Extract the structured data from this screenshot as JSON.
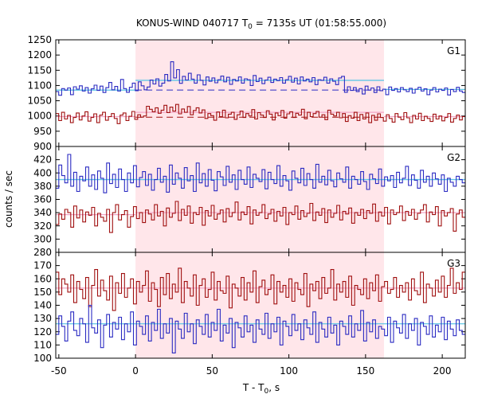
{
  "chart_data": {
    "type": "line",
    "title": {
      "main": "KONUS-WIND 040717 T",
      "sub": "0",
      "rest": " = 7135s UT (01:58:55.000)"
    },
    "xlabel": {
      "main": "T - T",
      "sub": "0",
      "rest": ", s"
    },
    "ylabel": "counts / sec",
    "xlim": [
      -52,
      215
    ],
    "xticks": [
      -50,
      0,
      50,
      100,
      150,
      200
    ],
    "shaded_interval": [
      0,
      162
    ],
    "colors": {
      "blue": "#2b2bc2",
      "red": "#a01010",
      "cyan": "#5fc6e6",
      "pink": "#f0a6c6",
      "shade": "#ffe6ea"
    },
    "panels": [
      {
        "label": "G1",
        "ylim": [
          900,
          1250
        ],
        "yticks": [
          900,
          950,
          1000,
          1050,
          1100,
          1150,
          1200,
          1250
        ],
        "series": [
          {
            "color": "blue",
            "fit_before": 1085,
            "fit_during": 1117,
            "fit_after": 1087,
            "dashed": 1085,
            "values": [
              1080,
              1068,
              1090,
              1085,
              1092,
              1070,
              1096,
              1088,
              1099,
              1082,
              1093,
              1075,
              1089,
              1101,
              1084,
              1098,
              1077,
              1093,
              1110,
              1086,
              1097,
              1082,
              1120,
              1090,
              1078,
              1094,
              1108,
              1083,
              1112,
              1099,
              1086,
              1095,
              1118,
              1105,
              1122,
              1098,
              1108,
              1136,
              1115,
              1178,
              1125,
              1152,
              1107,
              1130,
              1118,
              1140,
              1121,
              1108,
              1135,
              1117,
              1102,
              1128,
              1114,
              1125,
              1109,
              1119,
              1131,
              1112,
              1127,
              1104,
              1120,
              1115,
              1128,
              1108,
              1122,
              1119,
              1100,
              1133,
              1113,
              1124,
              1106,
              1118,
              1127,
              1110,
              1121,
              1116,
              1126,
              1108,
              1119,
              1130,
              1111,
              1124,
              1105,
              1128,
              1115,
              1121,
              1112,
              1126,
              1103,
              1119,
              1117,
              1127,
              1108,
              1122,
              1114,
              1103,
              1125,
              1130,
              1078,
              1096,
              1084,
              1093,
              1080,
              1090,
              1072,
              1098,
              1085,
              1092,
              1077,
              1096,
              1083,
              1088,
              1070,
              1095,
              1084,
              1090,
              1079,
              1093,
              1086,
              1080,
              1091,
              1075,
              1088,
              1094,
              1082,
              1089,
              1070,
              1085,
              1093,
              1079,
              1088,
              1084,
              1092,
              1069,
              1087,
              1080,
              1094,
              1082,
              1077
            ]
          },
          {
            "color": "red",
            "fit_before": 998,
            "fit_during": 1012,
            "fit_after": 998,
            "dashed": 996,
            "values": [
              1008,
              985,
              1012,
              990,
              1002,
              978,
              995,
              1010,
              987,
              1000,
              1014,
              983,
              995,
              1007,
              978,
              1003,
              1012,
              986,
              998,
              1008,
              992,
              975,
              1003,
              1010,
              985,
              999,
              1015,
              989,
              1004,
              996,
              1000,
              1032,
              1022,
              1014,
              1027,
              1009,
              1019,
              1035,
              1011,
              1029,
              1016,
              1038,
              1007,
              1023,
              1012,
              1031,
              1004,
              1018,
              1027,
              1010,
              1020,
              992,
              1008,
              1001,
              986,
              1013,
              998,
              1019,
              994,
              1006,
              1012,
              989,
              1004,
              1016,
              995,
              1008,
              1000,
              1021,
              990,
              1011,
              1003,
              995,
              1017,
              1006,
              987,
              1010,
              1001,
              1018,
              993,
              1007,
              1014,
              995,
              1009,
              1003,
              1022,
              991,
              1012,
              998,
              1008,
              1015,
              996,
              1004,
              988,
              1019,
              1006,
              1000,
              1012,
              994,
              1008,
              982,
              1001,
              993,
              1012,
              985,
              1005,
              990,
              1010,
              978,
              1002,
              986,
              1007,
              995,
              983,
              1004,
              992,
              980,
              1008,
              996,
              988,
              1011,
              994,
              978,
              1002,
              990,
              1009,
              985,
              999,
              992,
              982,
              1006,
              990,
              1000,
              984,
              995,
              1008,
              980,
              992,
              1003,
              987,
              998
            ]
          }
        ]
      },
      {
        "label": "G2",
        "ylim": [
          280,
          440
        ],
        "yticks": [
          280,
          300,
          320,
          340,
          360,
          380,
          400,
          420
        ],
        "series": [
          {
            "color": "blue",
            "fit_before": 390,
            "fit_during": 390,
            "fit_after": 390,
            "values": [
              377,
              412,
              396,
              385,
              428,
              380,
              401,
              372,
              395,
              388,
              409,
              380,
              397,
              375,
              403,
              392,
              370,
              415,
              384,
              398,
              378,
              406,
              390,
              372,
              400,
              385,
              411,
              379,
              393,
              402,
              381,
              398,
              374,
              390,
              407,
              386,
              395,
              371,
              412,
              383,
              400,
              392,
              377,
              408,
              388,
              396,
              372,
              415,
              385,
              399,
              380,
              405,
              389,
              373,
              402,
              394,
              381,
              410,
              386,
              397,
              375,
              404,
              390,
              383,
              409,
              378,
              398,
              392,
              387,
              405,
              376,
              401,
              390,
              384,
              411,
              380,
              396,
              388,
              374,
              403,
              392,
              385,
              407,
              381,
              399,
              390,
              377,
              413,
              386,
              395,
              382,
              404,
              388,
              379,
              400,
              391,
              386,
              409,
              377,
              395,
              390,
              383,
              402,
              387,
              375,
              398,
              391,
              384,
              406,
              380,
              394,
              388,
              396,
              378,
              401,
              385,
              392,
              410,
              381,
              397,
              389,
              377,
              404,
              386,
              395,
              380,
              400,
              391,
              383,
              397,
              372,
              392,
              386,
              380,
              395,
              390,
              385
            ]
          },
          {
            "color": "red",
            "fit_before": 337,
            "fit_during": 340,
            "fit_after": 340,
            "values": [
              322,
              338,
              330,
              345,
              340,
              318,
              350,
              332,
              344,
              326,
              341,
              336,
              348,
              320,
              339,
              333,
              327,
              345,
              310,
              340,
              352,
              329,
              337,
              343,
              318,
              334,
              349,
              331,
              340,
              325,
              344,
              338,
              329,
              352,
              335,
              342,
              320,
              347,
              333,
              339,
              357,
              328,
              345,
              336,
              350,
              324,
              340,
              337,
              348,
              321,
              343,
              335,
              351,
              330,
              338,
              344,
              326,
              346,
              334,
              340,
              356,
              329,
              341,
              337,
              349,
              323,
              344,
              336,
              340,
              352,
              331,
              338,
              345,
              327,
              342,
              335,
              348,
              322,
              340,
              337,
              350,
              330,
              343,
              334,
              339,
              354,
              328,
              341,
              336,
              346,
              325,
              344,
              333,
              339,
              351,
              329,
              342,
              338,
              347,
              324,
              340,
              336,
              345,
              331,
              343,
              339,
              353,
              327,
              341,
              335,
              348,
              323,
              344,
              337,
              340,
              350,
              328,
              342,
              336,
              345,
              330,
              339,
              344,
              352,
              326,
              341,
              337,
              349,
              320,
              343,
              335,
              340,
              346,
              312,
              338,
              344,
              333
            ]
          }
        ]
      },
      {
        "label": "G3",
        "ylim": [
          100,
          180
        ],
        "yticks": [
          100,
          110,
          120,
          130,
          140,
          150,
          160,
          170,
          180
        ],
        "series": [
          {
            "color": "red",
            "fit_before": 153,
            "fit_during": 153,
            "fit_after": 153,
            "values": [
              165,
              148,
              160,
              156,
              150,
              163,
              142,
              158,
              152,
              145,
              161,
              139,
              155,
              167,
              147,
              159,
              151,
              144,
              162,
              136,
              157,
              149,
              164,
              146,
              153,
              160,
              141,
              158,
              150,
              155,
              166,
              143,
              157,
              152,
              139,
              161,
              148,
              164,
              145,
              156,
              150,
              168,
              142,
              158,
              153,
              147,
              163,
              140,
              155,
              160,
              146,
              152,
              165,
              144,
              158,
              151,
              149,
              162,
              138,
              156,
              153,
              147,
              161,
              144,
              157,
              150,
              166,
              142,
              154,
              159,
              148,
              152,
              163,
              141,
              158,
              150,
              155,
              146,
              160,
              143,
              157,
              152,
              148,
              164,
              139,
              156,
              151,
              158,
              145,
              161,
              149,
              153,
              167,
              144,
              156,
              150,
              158,
              146,
              162,
              140,
              155,
              152,
              148,
              160,
              145,
              157,
              151,
              163,
              143,
              154,
              158,
              149,
              152,
              161,
              146,
              155,
              150,
              157,
              144,
              160,
              151,
              148,
              165,
              142,
              156,
              153,
              147,
              159,
              150,
              162,
              146,
              155,
              168,
              149,
              157,
              152,
              165
            ]
          },
          {
            "color": "blue",
            "fit_before": 126,
            "fit_during": 126,
            "fit_after": 126,
            "values": [
              118,
              132,
              124,
              113,
              128,
              135,
              121,
              117,
              130,
              126,
              112,
              140,
              123,
              119,
              129,
              108,
              125,
              133,
              116,
              127,
              122,
              131,
              114,
              126,
              120,
              135,
              110,
              128,
              124,
              118,
              132,
              113,
              127,
              121,
              137,
              115,
              126,
              119,
              130,
              104,
              128,
              122,
              115,
              134,
              120,
              126,
              111,
              129,
              124,
              118,
              133,
              116,
              127,
              121,
              137,
              113,
              125,
              119,
              130,
              108,
              127,
              123,
              116,
              132,
              120,
              125,
              112,
              129,
              122,
              118,
              134,
              115,
              126,
              120,
              131,
              110,
              128,
              124,
              117,
              133,
              121,
              126,
              114,
              129,
              123,
              118,
              135,
              112,
              127,
              122,
              116,
              131,
              119,
              125,
              110,
              128,
              124,
              118,
              132,
              116,
              126,
              121,
              136,
              113,
              127,
              120,
              129,
              115,
              124,
              122,
              117,
              131,
              112,
              128,
              123,
              119,
              133,
              115,
              126,
              121,
              130,
              110,
              127,
              124,
              118,
              132,
              116,
              125,
              120,
              131,
              114,
              128,
              122,
              117,
              129,
              121,
              118
            ]
          }
        ]
      }
    ]
  }
}
